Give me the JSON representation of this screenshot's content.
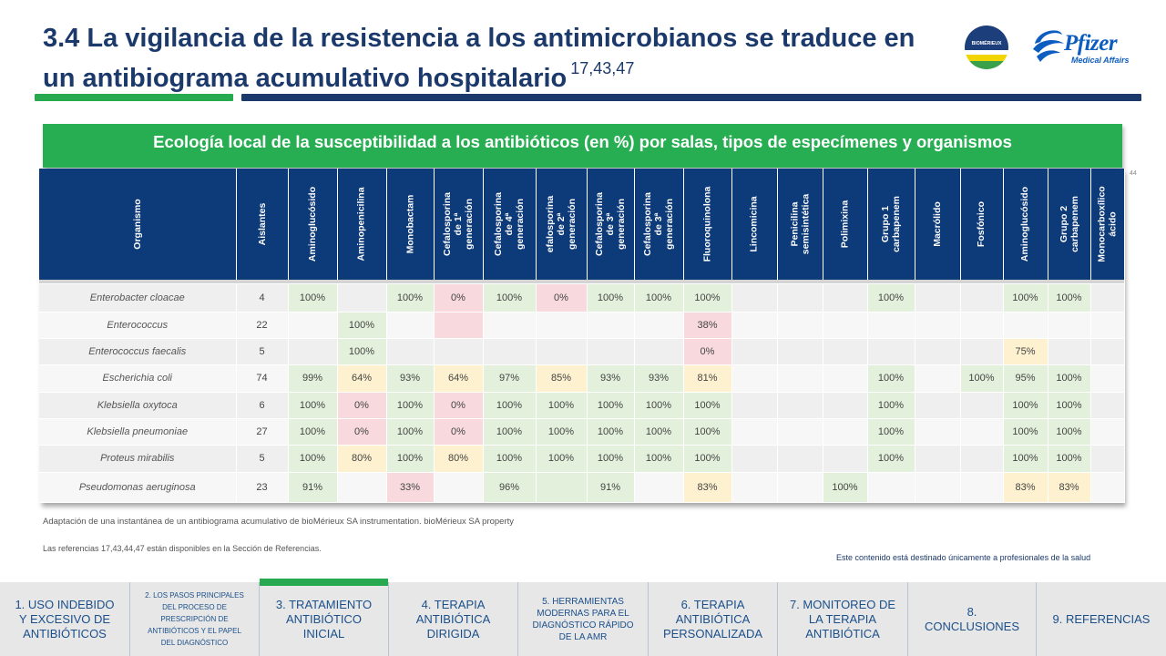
{
  "header": {
    "title": "3.4 La vigilancia de la resistencia a los antimicrobianos se traduce en un antibiograma acumulativo hospitalario",
    "title_refs": "17,43,47",
    "logo_biomerieux_text": "BIOMÉRIEUX",
    "logo_pfizer_text": "Pfizer",
    "logo_pfizer_sub": "Medical Affairs"
  },
  "banner": {
    "text": "Ecología local de la susceptibilidad a los antibióticos (en %) por salas, tipos de especímenes y organismos"
  },
  "slide_number": "44",
  "table": {
    "columns": [
      "Organismo",
      "Aislantes",
      "Aminoglucósido",
      "Aminopenicilina",
      "Monobactam",
      "Cefalosporina de 1ª generación",
      "Cefalosporina de 4ª generación",
      "efalosporina de 2ª generación",
      "Cefalosporina de 3ª generación",
      "Cefalosporina de 3ª generación",
      "Fluoroquinolona",
      "Lincomicina",
      "Penicilina semisintética",
      "Polimixina",
      "Grupo 1 carbapenem",
      "Macrólido",
      "Fosfónico",
      "Aminoglucósido",
      "Grupo 2 carbapenem",
      "Monocarboxílico ácido"
    ],
    "rows": [
      {
        "org": "Enterobacter cloacae",
        "isol": "4",
        "v": [
          "100%",
          "",
          "100%",
          "0%",
          "100%",
          "0%",
          "100%",
          "100%",
          "100%",
          "",
          "",
          "",
          "100%",
          "",
          "",
          "100%",
          "100%",
          ""
        ]
      },
      {
        "org": "Enterococcus",
        "isol": "22",
        "v": [
          "",
          "100%",
          "",
          "",
          "",
          "",
          "",
          "",
          "38%",
          "",
          "",
          "",
          "",
          "",
          "",
          "",
          "",
          ""
        ]
      },
      {
        "org": "Enterococcus faecalis",
        "isol": "5",
        "v": [
          "",
          "100%",
          "",
          "",
          "",
          "",
          "",
          "",
          "0%",
          "",
          "",
          "",
          "",
          "",
          "",
          "75%",
          "",
          ""
        ]
      },
      {
        "org": "Escherichia coli",
        "isol": "74",
        "v": [
          "99%",
          "64%",
          "93%",
          "64%",
          "97%",
          "85%",
          "93%",
          "93%",
          "81%",
          "",
          "",
          "",
          "100%",
          "",
          "100%",
          "95%",
          "100%",
          ""
        ]
      },
      {
        "org": "Klebsiella oxytoca",
        "isol": "6",
        "v": [
          "100%",
          "0%",
          "100%",
          "0%",
          "100%",
          "100%",
          "100%",
          "100%",
          "100%",
          "",
          "",
          "",
          "100%",
          "",
          "",
          "100%",
          "100%",
          ""
        ]
      },
      {
        "org": "Klebsiella pneumoniae",
        "isol": "27",
        "v": [
          "100%",
          "0%",
          "100%",
          "0%",
          "100%",
          "100%",
          "100%",
          "100%",
          "100%",
          "",
          "",
          "",
          "100%",
          "",
          "",
          "100%",
          "100%",
          ""
        ]
      },
      {
        "org": "Proteus mirabilis",
        "isol": "5",
        "v": [
          "100%",
          "80%",
          "100%",
          "80%",
          "100%",
          "100%",
          "100%",
          "100%",
          "100%",
          "",
          "",
          "",
          "100%",
          "",
          "",
          "100%",
          "100%",
          ""
        ]
      },
      {
        "org": "Pseudomonas aeruginosa",
        "isol": "23",
        "v": [
          "91%",
          "",
          "33%",
          "",
          "96%",
          "",
          "91%",
          "",
          "83%",
          "",
          "",
          "100%",
          "",
          "",
          "",
          "83%",
          "83%",
          ""
        ]
      }
    ],
    "colors": [
      [
        "g",
        "",
        "g",
        "r",
        "g",
        "r",
        "g",
        "g",
        "g",
        "",
        "",
        "",
        "g",
        "",
        "",
        "g",
        "g",
        ""
      ],
      [
        "",
        "g",
        "",
        "r",
        "",
        "",
        "",
        "",
        "r",
        "",
        "",
        "",
        "",
        "",
        "",
        "",
        "",
        ""
      ],
      [
        "",
        "g",
        "",
        "",
        "",
        "",
        "",
        "",
        "r",
        "",
        "",
        "",
        "",
        "",
        "",
        "y",
        "",
        ""
      ],
      [
        "g",
        "y",
        "g",
        "y",
        "g",
        "y",
        "g",
        "g",
        "y",
        "",
        "",
        "",
        "g",
        "",
        "g",
        "g",
        "g",
        ""
      ],
      [
        "g",
        "r",
        "g",
        "r",
        "g",
        "g",
        "g",
        "g",
        "g",
        "",
        "",
        "",
        "g",
        "",
        "",
        "g",
        "g",
        ""
      ],
      [
        "g",
        "r",
        "g",
        "r",
        "g",
        "g",
        "g",
        "g",
        "g",
        "",
        "",
        "",
        "g",
        "",
        "",
        "g",
        "g",
        ""
      ],
      [
        "g",
        "y",
        "g",
        "y",
        "g",
        "g",
        "g",
        "g",
        "g",
        "",
        "",
        "",
        "g",
        "",
        "",
        "g",
        "g",
        ""
      ],
      [
        "g",
        "",
        "r",
        "",
        "g",
        "g",
        "g",
        "",
        "y",
        "",
        "",
        "g",
        "",
        "",
        "",
        "y",
        "y",
        ""
      ]
    ]
  },
  "footer": {
    "source": "Adaptación de una instantánea de un antibiograma acumulativo de bioMérieux SA instrumentation. bioMérieux SA property",
    "references": "Las referencias 17,43,44,47 están disponibles en la Sección de Referencias.",
    "disclaimer": "Este contenido está destinado únicamente a profesionales de la salud"
  },
  "nav": [
    {
      "label": "1. USO INDEBIDO Y EXCESIVO DE ANTIBIÓTICOS",
      "active": false
    },
    {
      "label": "2. LOS PASOS PRINCIPALES DEL PROCESO DE PRESCRIPCIÓN DE ANTIBIÓTICOS Y EL PAPEL DEL DIAGNÓSTICO",
      "active": false
    },
    {
      "label": "3. TRATAMIENTO ANTIBIÓTICO INICIAL",
      "active": true
    },
    {
      "label": "4. TERAPIA ANTIBIÓTICA DIRIGIDA",
      "active": false
    },
    {
      "label": "5. HERRAMIENTAS MODERNAS PARA EL DIAGNÓSTICO RÁPIDO DE LA AMR",
      "active": false
    },
    {
      "label": "6. TERAPIA ANTIBIÓTICA PERSONALIZADA",
      "active": false
    },
    {
      "label": "7. MONITOREO DE LA TERAPIA ANTIBIÓTICA",
      "active": false
    },
    {
      "label": "8. CONCLUSIONES",
      "active": false
    },
    {
      "label": "9. REFERENCIAS",
      "active": false
    }
  ],
  "theme": {
    "navy": "#1b3a6b",
    "green": "#26a94f",
    "table_header": "#0d3a78",
    "cell_green": "#e3f1dc",
    "cell_red": "#f8d9de",
    "cell_yellow": "#fdf1cf"
  }
}
